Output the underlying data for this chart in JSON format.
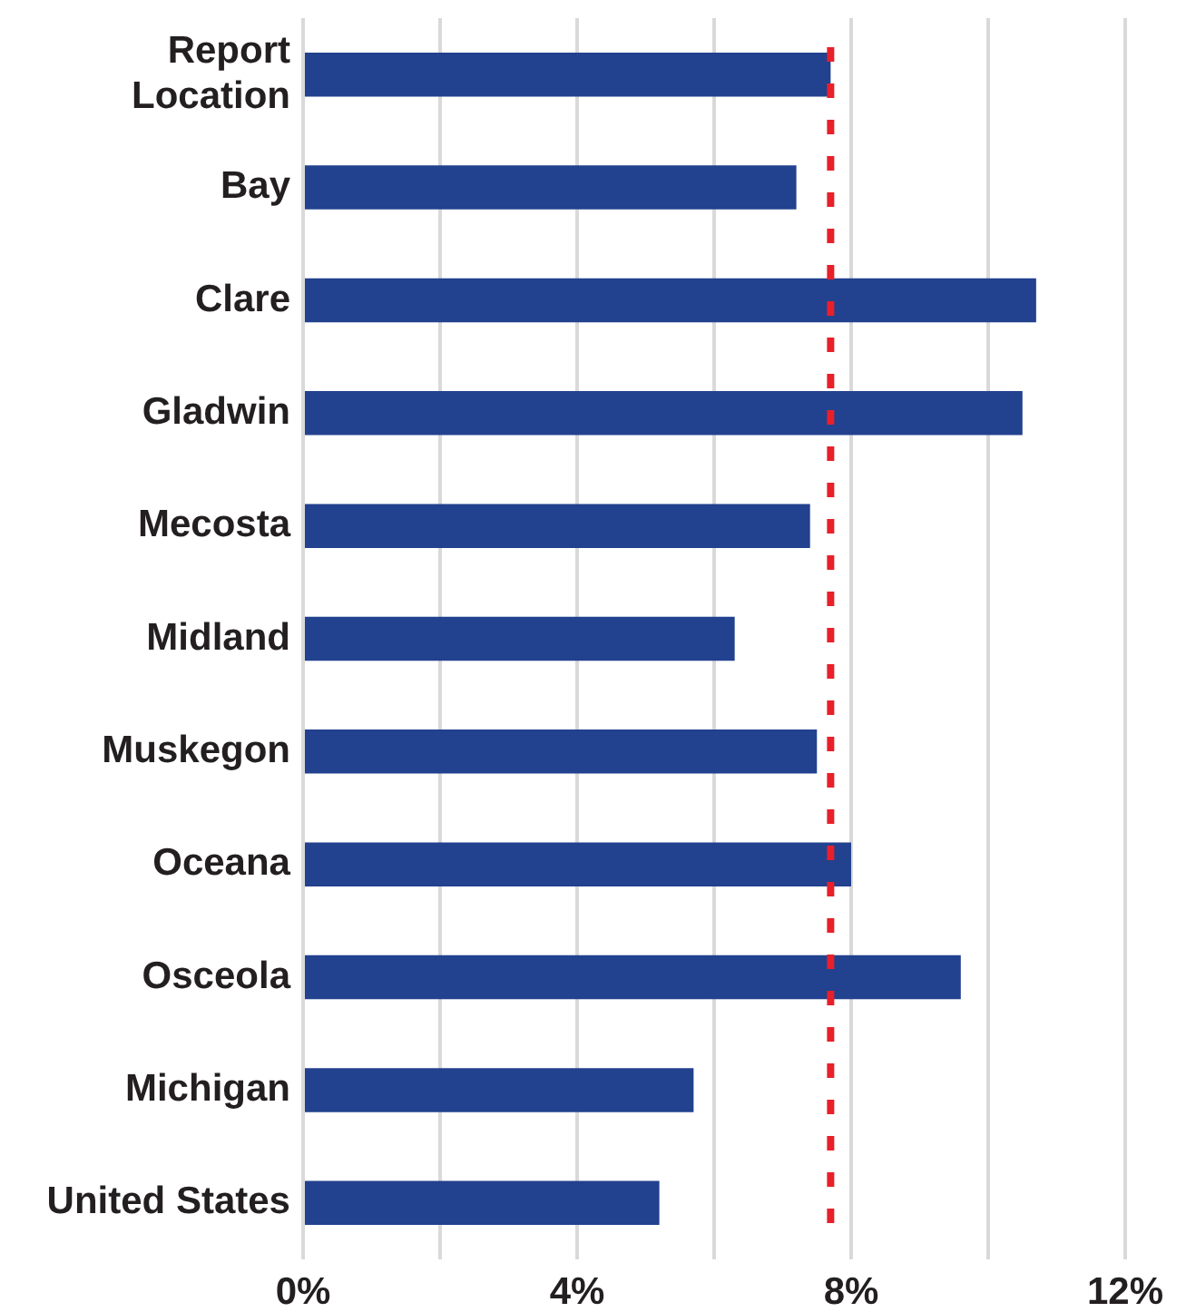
{
  "chart_data": {
    "type": "bar",
    "orientation": "horizontal",
    "categories": [
      "Report\nLocation",
      "Bay",
      "Clare",
      "Gladwin",
      "Mecosta",
      "Midland",
      "Muskegon",
      "Oceana",
      "Osceola",
      "Michigan",
      "United States"
    ],
    "values": [
      7.7,
      7.2,
      10.7,
      10.5,
      7.4,
      6.3,
      7.5,
      8.0,
      9.6,
      5.7,
      5.2
    ],
    "color": "#22418e",
    "xlim": [
      0,
      12
    ],
    "xticks": [
      {
        "value": 0,
        "label": "0%"
      },
      {
        "value": 2,
        "label": null
      },
      {
        "value": 4,
        "label": "4%"
      },
      {
        "value": 6,
        "label": null
      },
      {
        "value": 8,
        "label": "8%"
      },
      {
        "value": 10,
        "label": null
      },
      {
        "value": 12,
        "label": "12%"
      }
    ],
    "grid": "x",
    "legend": false,
    "ref_lines": [
      {
        "axis": "x",
        "value": 7.7,
        "color": "#e8202a",
        "line_style": "dotted"
      }
    ]
  }
}
